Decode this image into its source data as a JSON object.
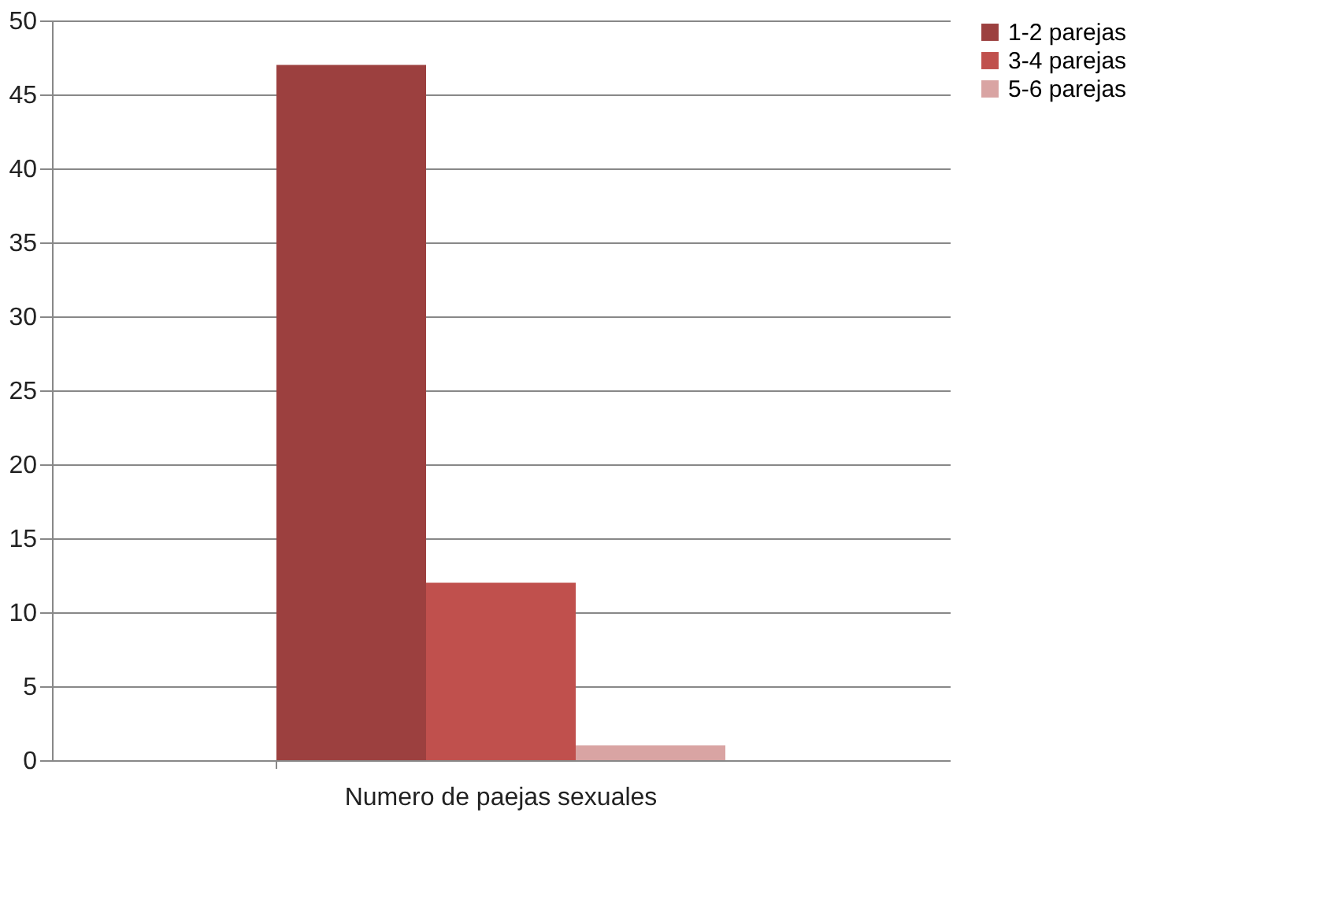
{
  "chart_data": {
    "type": "bar",
    "categories": [
      "Numero de paejas sexuales"
    ],
    "series": [
      {
        "name": "1-2 parejas",
        "color": "#9c403f",
        "values": [
          47
        ]
      },
      {
        "name": "3-4 parejas",
        "color": "#c0504d",
        "values": [
          12
        ]
      },
      {
        "name": "5-6 parejas",
        "color": "#d9a4a3",
        "values": [
          1
        ]
      }
    ],
    "ylim": [
      0,
      50
    ],
    "yticks": [
      0,
      5,
      10,
      15,
      20,
      25,
      30,
      35,
      40,
      45,
      50
    ],
    "grid": "y",
    "legend": "right"
  }
}
